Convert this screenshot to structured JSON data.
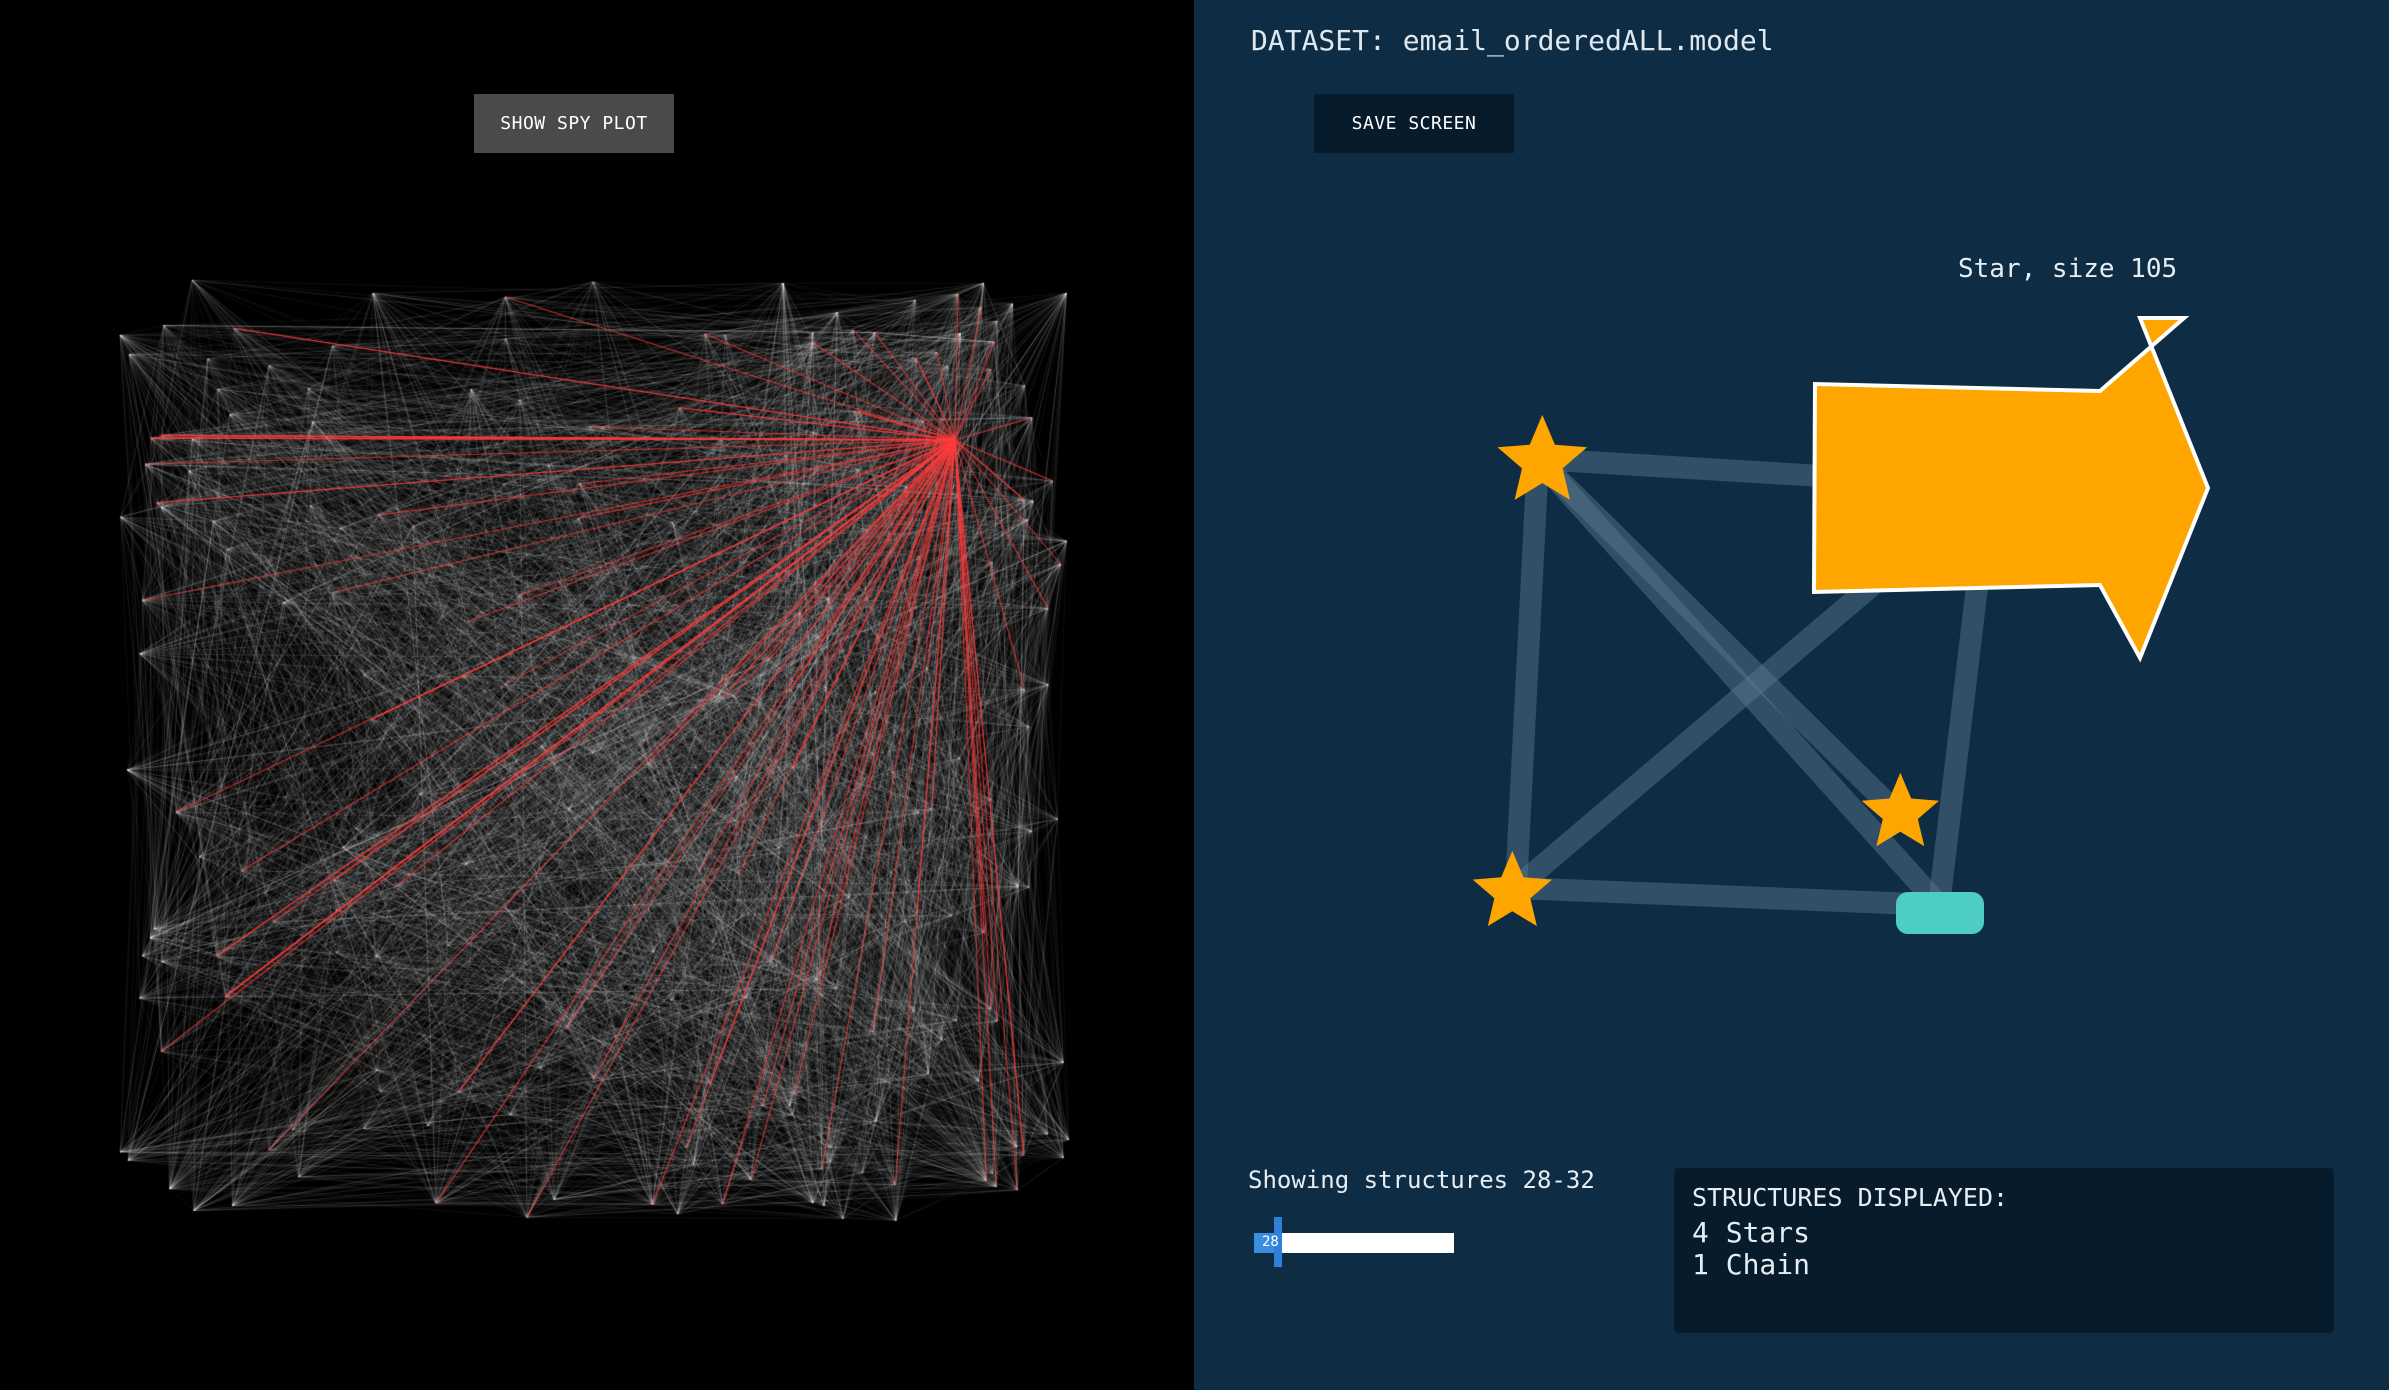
{
  "left": {
    "spy_button_label": "SHOW SPY PLOT"
  },
  "right": {
    "dataset_title": "DATASET: email_orderedALL.model",
    "save_button_label": "SAVE SCREEN",
    "hover_label": "Star, size 105",
    "range_label": "Showing structures 28-32",
    "slider_value": "28",
    "slider_fraction": 0.12,
    "structures_title": "STRUCTURES DISPLAYED:",
    "stars_count": "4 Stars",
    "chain_count": "1 Chain"
  },
  "colors": {
    "left_background": "#000000",
    "right_background": "#0e2d45",
    "star_fill": "#ffa500",
    "chain_fill": "#4ecdc4",
    "highlight_edge": "#ff3b3b",
    "network_edge": "#ffffff"
  },
  "icons": {
    "star": "star-icon",
    "chain": "chain-node"
  }
}
